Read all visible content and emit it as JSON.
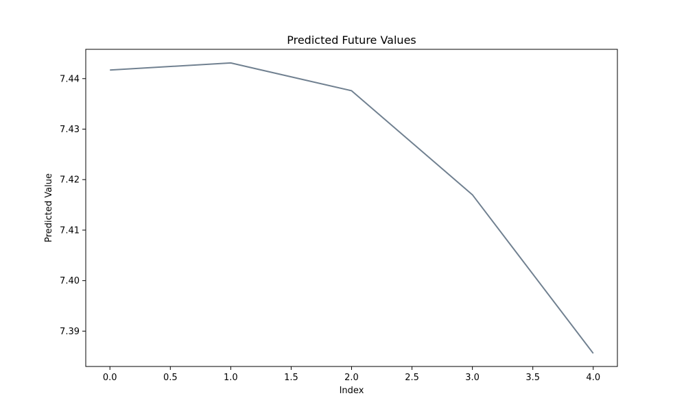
{
  "chart_data": {
    "type": "line",
    "title": "Predicted Future Values",
    "xlabel": "Index",
    "ylabel": "Predicted Value",
    "x": [
      0,
      1,
      2,
      3,
      4
    ],
    "series": [
      {
        "values": [
          7.4417,
          7.4431,
          7.4376,
          7.417,
          7.3856
        ]
      }
    ],
    "xlim": [
      -0.2,
      4.2
    ],
    "ylim": [
      7.383,
      7.4458
    ],
    "xticks": [
      0.0,
      0.5,
      1.0,
      1.5,
      2.0,
      2.5,
      3.0,
      3.5,
      4.0
    ],
    "xtick_labels": [
      "0.0",
      "0.5",
      "1.0",
      "1.5",
      "2.0",
      "2.5",
      "3.0",
      "3.5",
      "4.0"
    ],
    "yticks": [
      7.39,
      7.4,
      7.41,
      7.42,
      7.43,
      7.44
    ],
    "ytick_labels": [
      "7.39",
      "7.40",
      "7.41",
      "7.42",
      "7.43",
      "7.44"
    ],
    "line_color": "#708090",
    "grid": false,
    "legend": "none"
  }
}
